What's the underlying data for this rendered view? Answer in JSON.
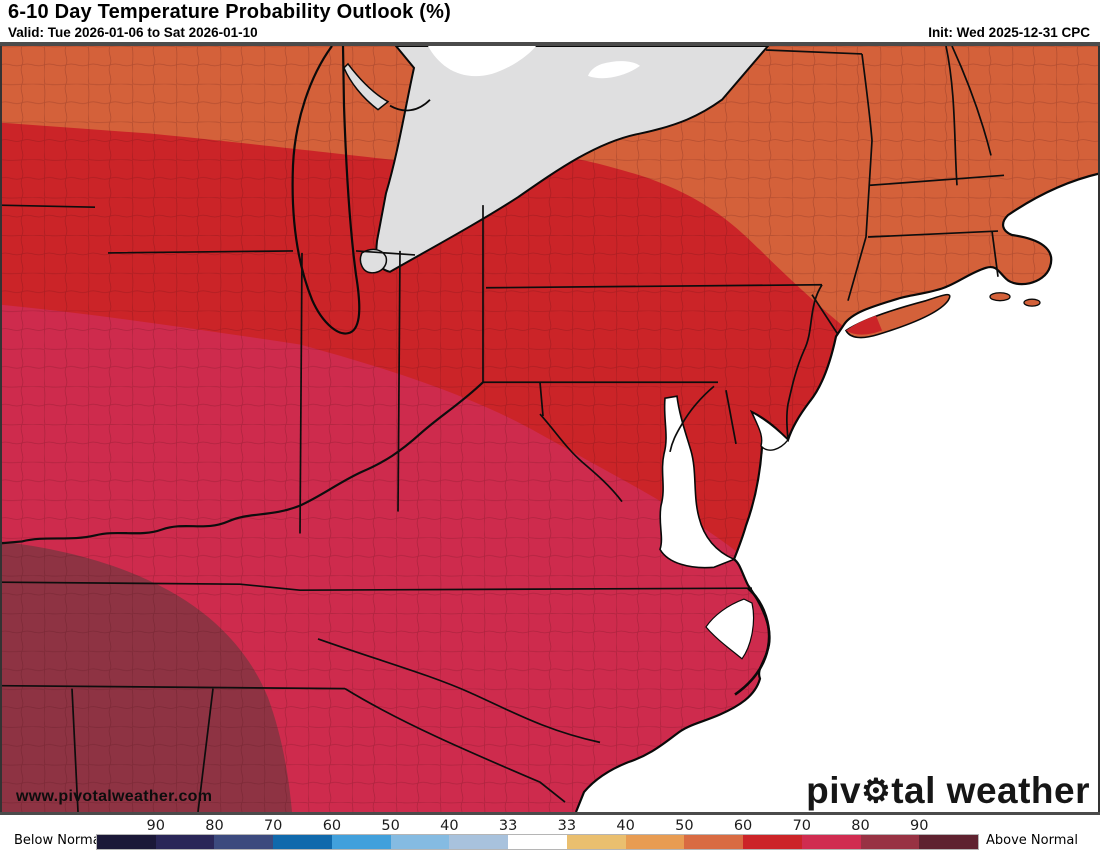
{
  "header": {
    "title": "6-10 Day Temperature Probability Outlook (%)",
    "valid": "Valid: Tue 2026-01-06 to Sat 2026-01-10",
    "init": "Init: Wed 2025-12-31 CPC"
  },
  "map": {
    "watermark": "www.pivotalweather.com",
    "logo_pre": "piv",
    "logo_gear": "⚙",
    "logo_post": "tal weather",
    "colors": {
      "orange": "#d4613a",
      "red": "#cb2428",
      "crimson": "#ce2b4d",
      "maroon": "#8e3343",
      "canada_gray": "#dfdfe0",
      "water": "#ffffff",
      "county_line": "#40070e",
      "border": "#0a0a0a"
    }
  },
  "legend": {
    "below_label": "Below Normal",
    "above_label": "Above Normal",
    "ticks": [
      "90",
      "80",
      "70",
      "60",
      "50",
      "40",
      "33",
      "33",
      "40",
      "50",
      "60",
      "70",
      "80",
      "90"
    ],
    "segment_colors": [
      "#1b1838",
      "#2a2658",
      "#3c4a7e",
      "#1069ac",
      "#41a0dc",
      "#85bbe2",
      "#a8c2dd",
      "#ffffff",
      "#eabf6f",
      "#e89c52",
      "#d96b42",
      "#cc2428",
      "#d02c50",
      "#983243",
      "#5f2230"
    ]
  }
}
